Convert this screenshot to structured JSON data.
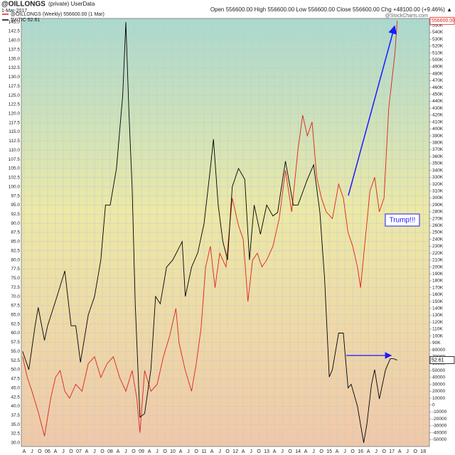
{
  "chart_data": {
    "type": "line",
    "title": "@OILLONGS",
    "subtitle": "(private) UserData",
    "date": "1-Mar-2017",
    "header_stats": "Open 556600.00  High 556600.00  Low 556600.00  Close 556600.00  Chg +48100.00 (+9.46%) ▲",
    "watermark": "@StockCharts.com",
    "annotation": "Trump!!!",
    "grid": true,
    "xlim": [
      2005.16,
      2018.2
    ],
    "ylim": [
      29,
      146
    ],
    "y2lim": [
      -60000,
      560000
    ],
    "xticks": [
      {
        "value": 2005.25,
        "label": "A"
      },
      {
        "value": 2005.5,
        "label": "J"
      },
      {
        "value": 2005.75,
        "label": "O"
      },
      {
        "value": 2006,
        "label": "06"
      },
      {
        "value": 2006.25,
        "label": "A"
      },
      {
        "value": 2006.5,
        "label": "J"
      },
      {
        "value": 2006.75,
        "label": "O"
      },
      {
        "value": 2007,
        "label": "07"
      },
      {
        "value": 2007.25,
        "label": "A"
      },
      {
        "value": 2007.5,
        "label": "J"
      },
      {
        "value": 2007.75,
        "label": "O"
      },
      {
        "value": 2008,
        "label": "08"
      },
      {
        "value": 2008.25,
        "label": "A"
      },
      {
        "value": 2008.5,
        "label": "J"
      },
      {
        "value": 2008.75,
        "label": "O"
      },
      {
        "value": 2009,
        "label": "09"
      },
      {
        "value": 2009.25,
        "label": "A"
      },
      {
        "value": 2009.5,
        "label": "J"
      },
      {
        "value": 2009.75,
        "label": "O"
      },
      {
        "value": 2010,
        "label": "10"
      },
      {
        "value": 2010.25,
        "label": "A"
      },
      {
        "value": 2010.5,
        "label": "J"
      },
      {
        "value": 2010.75,
        "label": "O"
      },
      {
        "value": 2011,
        "label": "11"
      },
      {
        "value": 2011.25,
        "label": "A"
      },
      {
        "value": 2011.5,
        "label": "J"
      },
      {
        "value": 2011.75,
        "label": "O"
      },
      {
        "value": 2012,
        "label": "12"
      },
      {
        "value": 2012.25,
        "label": "A"
      },
      {
        "value": 2012.5,
        "label": "J"
      },
      {
        "value": 2012.75,
        "label": "O"
      },
      {
        "value": 2013,
        "label": "13"
      },
      {
        "value": 2013.25,
        "label": "A"
      },
      {
        "value": 2013.5,
        "label": "J"
      },
      {
        "value": 2013.75,
        "label": "O"
      },
      {
        "value": 2014,
        "label": "14"
      },
      {
        "value": 2014.25,
        "label": "A"
      },
      {
        "value": 2014.5,
        "label": "J"
      },
      {
        "value": 2014.75,
        "label": "O"
      },
      {
        "value": 2015,
        "label": "15"
      },
      {
        "value": 2015.25,
        "label": "A"
      },
      {
        "value": 2015.5,
        "label": "J"
      },
      {
        "value": 2015.75,
        "label": "O"
      },
      {
        "value": 2016,
        "label": "16"
      },
      {
        "value": 2016.25,
        "label": "A"
      },
      {
        "value": 2016.5,
        "label": "J"
      },
      {
        "value": 2016.75,
        "label": "O"
      },
      {
        "value": 2017,
        "label": "17"
      },
      {
        "value": 2017.25,
        "label": "A"
      },
      {
        "value": 2017.5,
        "label": "J"
      },
      {
        "value": 2017.75,
        "label": "O"
      },
      {
        "value": 2018,
        "label": "18"
      }
    ],
    "yticks": [
      {
        "value": 30,
        "label": "30.0"
      },
      32.5,
      {
        "value": 35,
        "label": "35.0"
      },
      37.5,
      {
        "value": 40,
        "label": "40.0"
      },
      42.5,
      {
        "value": 45,
        "label": "45.0"
      },
      47.5,
      {
        "value": 50,
        "label": "50.0"
      },
      52.5,
      {
        "value": 55,
        "label": "55.0"
      },
      57.5,
      {
        "value": 60,
        "label": "60.0"
      },
      62.5,
      {
        "value": 65,
        "label": "65.0"
      },
      67.5,
      {
        "value": 70,
        "label": "70.0"
      },
      72.5,
      {
        "value": 75,
        "label": "75.0"
      },
      77.5,
      {
        "value": 80,
        "label": "80.0"
      },
      82.5,
      {
        "value": 85,
        "label": "85.0"
      },
      87.5,
      {
        "value": 90,
        "label": "90.0"
      },
      92.5,
      {
        "value": 95,
        "label": "95.0"
      },
      97.5,
      {
        "value": 100,
        "label": "100.0"
      },
      102.5,
      {
        "value": 105,
        "label": "105.0"
      },
      107.5,
      {
        "value": 110,
        "label": "110.0"
      },
      112.5,
      {
        "value": 115,
        "label": "115.0"
      },
      117.5,
      {
        "value": 120,
        "label": "120.0"
      },
      122.5,
      {
        "value": 125,
        "label": "125.0"
      },
      127.5,
      {
        "value": 130,
        "label": "130.0"
      },
      132.5,
      {
        "value": 135,
        "label": "135.0"
      },
      137.5,
      {
        "value": 140,
        "label": "140.0"
      },
      142.5,
      {
        "value": 145,
        "label": "145.0"
      }
    ],
    "y2ticks": [
      -50000,
      -40000,
      -30000,
      -20000,
      -10000,
      0,
      10000,
      20000,
      30000,
      40000,
      50000,
      60000,
      70000,
      80000,
      {
        "value": 90000,
        "label": "90K"
      },
      {
        "value": 100000,
        "label": "100K"
      },
      {
        "value": 110000,
        "label": "110K"
      },
      {
        "value": 120000,
        "label": "120K"
      },
      {
        "value": 130000,
        "label": "130K"
      },
      {
        "value": 140000,
        "label": "140K"
      },
      {
        "value": 150000,
        "label": "150K"
      },
      {
        "value": 160000,
        "label": "160K"
      },
      {
        "value": 170000,
        "label": "170K"
      },
      {
        "value": 180000,
        "label": "180K"
      },
      {
        "value": 190000,
        "label": "190K"
      },
      {
        "value": 200000,
        "label": "200K"
      },
      {
        "value": 210000,
        "label": "210K"
      },
      {
        "value": 220000,
        "label": "220K"
      },
      {
        "value": 230000,
        "label": "230K"
      },
      {
        "value": 240000,
        "label": "240K"
      },
      {
        "value": 250000,
        "label": "250K"
      },
      {
        "value": 260000,
        "label": "260K"
      },
      {
        "value": 270000,
        "label": "270K"
      },
      {
        "value": 280000,
        "label": "280K"
      },
      {
        "value": 290000,
        "label": "290K"
      },
      {
        "value": 300000,
        "label": "300K"
      },
      {
        "value": 310000,
        "label": "310K"
      },
      {
        "value": 320000,
        "label": "320K"
      },
      {
        "value": 330000,
        "label": "330K"
      },
      {
        "value": 340000,
        "label": "340K"
      },
      {
        "value": 350000,
        "label": "350K"
      },
      {
        "value": 360000,
        "label": "360K"
      },
      {
        "value": 370000,
        "label": "370K"
      },
      {
        "value": 380000,
        "label": "380K"
      },
      {
        "value": 390000,
        "label": "390K"
      },
      {
        "value": 400000,
        "label": "400K"
      },
      {
        "value": 410000,
        "label": "410K"
      },
      {
        "value": 420000,
        "label": "420K"
      },
      {
        "value": 430000,
        "label": "430K"
      },
      {
        "value": 440000,
        "label": "440K"
      },
      {
        "value": 450000,
        "label": "450K"
      },
      {
        "value": 460000,
        "label": "460K"
      },
      {
        "value": 470000,
        "label": "470K"
      },
      {
        "value": 480000,
        "label": "480K"
      },
      {
        "value": 490000,
        "label": "490K"
      },
      {
        "value": 500000,
        "label": "500K"
      },
      {
        "value": 510000,
        "label": "510K"
      },
      {
        "value": 520000,
        "label": "520K"
      },
      {
        "value": 530000,
        "label": "530K"
      },
      {
        "value": 540000,
        "label": "540K"
      },
      {
        "value": 550000,
        "label": "550K"
      }
    ],
    "series": [
      {
        "name": "@OILLONGS (Weekly) 556600.00 (1 Mar)",
        "color": "#e0201b",
        "axis": "y2",
        "end_label": "556600.00",
        "x": [
          2005.2,
          2005.35,
          2005.5,
          2005.7,
          2005.9,
          2006.1,
          2006.25,
          2006.4,
          2006.55,
          2006.7,
          2006.9,
          2007.1,
          2007.3,
          2007.5,
          2007.7,
          2007.9,
          2008.1,
          2008.3,
          2008.5,
          2008.7,
          2008.85,
          2008.95,
          2009.1,
          2009.3,
          2009.5,
          2009.7,
          2009.9,
          2010.1,
          2010.2,
          2010.4,
          2010.6,
          2010.75,
          2010.9,
          2011.05,
          2011.2,
          2011.35,
          2011.5,
          2011.7,
          2011.9,
          2012.1,
          2012.25,
          2012.4,
          2012.55,
          2012.7,
          2012.85,
          2013.0,
          2013.2,
          2013.4,
          2013.6,
          2013.8,
          2014.0,
          2014.15,
          2014.3,
          2014.45,
          2014.6,
          2014.75,
          2014.9,
          2015.1,
          2015.3,
          2015.45,
          2015.6,
          2015.75,
          2015.9,
          2016.0,
          2016.15,
          2016.3,
          2016.45,
          2016.6,
          2016.75,
          2016.9,
          2017.0,
          2017.1,
          2017.17
        ],
        "values": [
          70000,
          40000,
          20000,
          -10000,
          -45000,
          10000,
          40000,
          50000,
          20000,
          10000,
          30000,
          20000,
          60000,
          70000,
          40000,
          60000,
          70000,
          40000,
          20000,
          50000,
          10000,
          -40000,
          50000,
          20000,
          30000,
          70000,
          100000,
          140000,
          90000,
          50000,
          20000,
          60000,
          110000,
          200000,
          230000,
          170000,
          220000,
          200000,
          300000,
          260000,
          240000,
          150000,
          210000,
          220000,
          200000,
          210000,
          230000,
          270000,
          340000,
          280000,
          370000,
          420000,
          390000,
          410000,
          330000,
          300000,
          280000,
          270000,
          320000,
          300000,
          250000,
          230000,
          200000,
          170000,
          240000,
          310000,
          330000,
          280000,
          300000,
          430000,
          470000,
          510000,
          556600
        ]
      },
      {
        "name": "$WTIC 52.61",
        "color": "#000000",
        "axis": "y",
        "end_label": "52.61",
        "x": [
          2005.2,
          2005.4,
          2005.6,
          2005.7,
          2005.9,
          2006.0,
          2006.3,
          2006.55,
          2006.75,
          2006.9,
          2007.05,
          2007.3,
          2007.5,
          2007.7,
          2007.85,
          2008.0,
          2008.2,
          2008.4,
          2008.5,
          2008.6,
          2008.7,
          2008.8,
          2008.95,
          2009.1,
          2009.3,
          2009.45,
          2009.6,
          2009.8,
          2010.0,
          2010.3,
          2010.4,
          2010.6,
          2010.8,
          2011.0,
          2011.2,
          2011.3,
          2011.45,
          2011.6,
          2011.75,
          2011.9,
          2012.1,
          2012.3,
          2012.45,
          2012.6,
          2012.8,
          2013.0,
          2013.2,
          2013.35,
          2013.6,
          2013.85,
          2014.0,
          2014.3,
          2014.5,
          2014.7,
          2014.85,
          2015.0,
          2015.1,
          2015.3,
          2015.45,
          2015.6,
          2015.7,
          2015.9,
          2016.1,
          2016.2,
          2016.35,
          2016.45,
          2016.6,
          2016.8,
          2016.95,
          2017.05,
          2017.17
        ],
        "values": [
          55,
          50,
          62,
          67,
          58,
          62,
          70,
          77,
          62,
          62,
          52,
          65,
          70,
          80,
          95,
          95,
          105,
          125,
          145,
          120,
          100,
          68,
          37,
          38,
          50,
          70,
          68,
          78,
          80,
          85,
          70,
          78,
          82,
          90,
          105,
          113,
          95,
          85,
          80,
          100,
          105,
          102,
          80,
          95,
          87,
          95,
          92,
          93,
          107,
          95,
          95,
          102,
          106,
          93,
          75,
          48,
          50,
          60,
          60,
          45,
          46,
          40,
          30,
          35,
          46,
          50,
          42,
          50,
          53,
          53,
          52.61
        ]
      }
    ]
  }
}
